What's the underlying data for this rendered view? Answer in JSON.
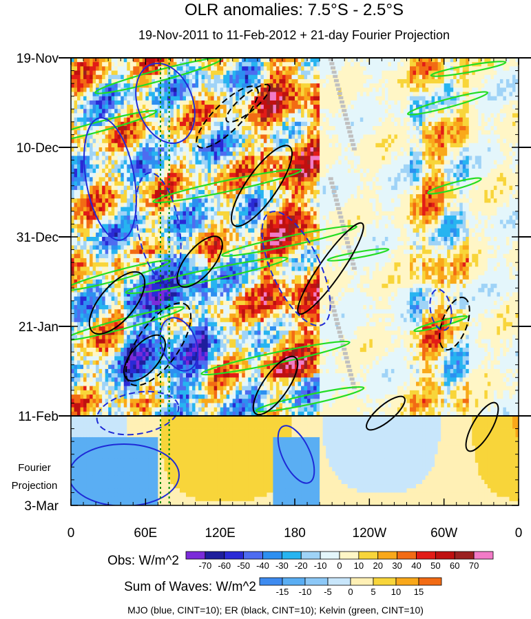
{
  "chart_data": {
    "type": "heatmap",
    "title": "OLR anomalies: 7.5°S - 2.5°S",
    "subtitle": "19-Nov-2011 to 11-Feb-2012 + 21-day Fourier Projection",
    "y_ticks": [
      "19-Nov",
      "10-Dec",
      "31-Dec",
      "21-Jan",
      "11-Feb",
      "3-Mar"
    ],
    "y_side_label": [
      "Fourier",
      "Projection"
    ],
    "x_ticks": [
      "0",
      "60E",
      "120E",
      "180",
      "120W",
      "60W",
      "0"
    ],
    "x_range_deg": [
      0,
      360
    ],
    "time_range": [
      "19-Nov-2011",
      "3-Mar-2012"
    ],
    "obs_end": "11-Feb",
    "obs_colorbar": {
      "label": "Obs: W/m^2",
      "levels": [
        "-70",
        "-60",
        "-50",
        "-40",
        "-30",
        "-20",
        "-10",
        "0",
        "10",
        "20",
        "30",
        "40",
        "50",
        "60",
        "70"
      ],
      "colors": [
        "#7b2bd9",
        "#1e1e9c",
        "#2a2ad6",
        "#4e6cf0",
        "#2d8ff0",
        "#27b4f0",
        "#9fd3f7",
        "#e4f6fb",
        "#fff6c6",
        "#f8d53a",
        "#f9a81a",
        "#f26b14",
        "#e21c17",
        "#bf1010",
        "#9b2020",
        "#f27bc7"
      ]
    },
    "waves_colorbar": {
      "label": "Sum of Waves: W/m^2",
      "levels": [
        "-15",
        "-10",
        "-5",
        "0",
        "5",
        "10",
        "15"
      ],
      "colors": [
        "#3e8bf0",
        "#5aaef3",
        "#8cc8f7",
        "#c8e6fb",
        "#fff0b5",
        "#f8d53a",
        "#f9a81a",
        "#f26b14"
      ]
    },
    "footnote": "MJO (blue, CINT=10); ER (black, CINT=10); Kelvin (green, CINT=10)",
    "contour_colors": {
      "mjo": "#1e2ad6",
      "er": "#000000",
      "kelvin": "#22dd22",
      "missing": "#c0c0c0",
      "marker": "#008800"
    }
  }
}
